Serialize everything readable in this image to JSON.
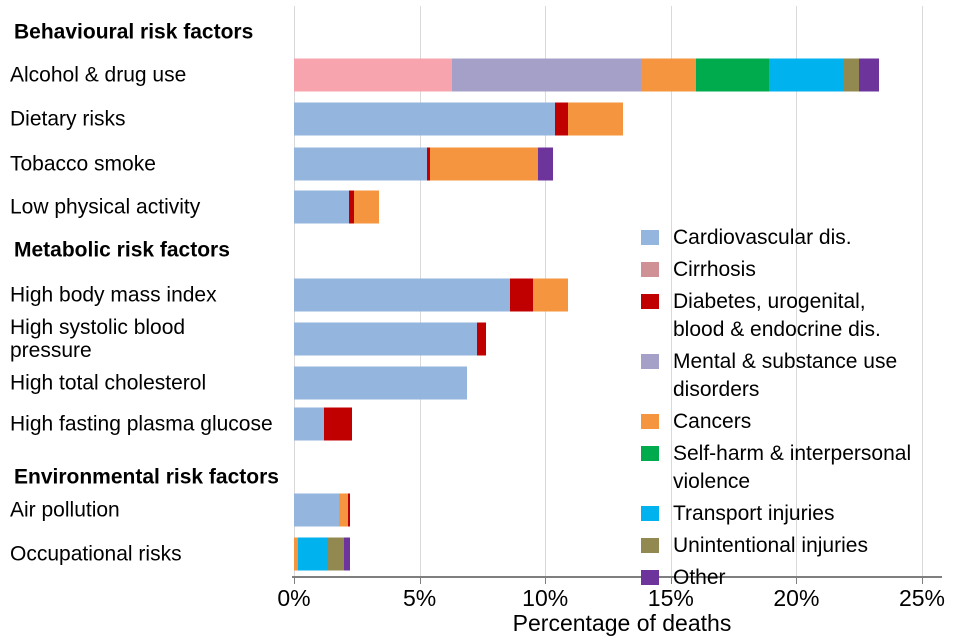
{
  "chart_data": {
    "type": "bar",
    "subtype": "horizontal-stacked",
    "title": "",
    "xlabel": "Percentage of deaths",
    "ylabel": "",
    "xlim": [
      0,
      25
    ],
    "grid": "vertical-light-gray",
    "legend_position": "inside-right",
    "x_ticks": [
      {
        "value": 0,
        "label": "0%"
      },
      {
        "value": 5,
        "label": "5%"
      },
      {
        "value": 10,
        "label": "10%"
      },
      {
        "value": 15,
        "label": "15%"
      },
      {
        "value": 20,
        "label": "20%"
      },
      {
        "value": 25,
        "label": "25%"
      }
    ],
    "categories": [
      {
        "key": "cvd",
        "label": "Cardiovascular dis.",
        "color": "#94b5dd"
      },
      {
        "key": "cirrhosis",
        "label": "Cirrhosis",
        "color": "#f7a4ae",
        "legend_swatch_color": "#cf9096"
      },
      {
        "key": "diabetes",
        "label": "Diabetes, urogenital,\nblood & endocrine dis.",
        "color": "#c00000"
      },
      {
        "key": "mental",
        "label": "Mental & substance use\ndisorders",
        "color": "#a5a0c8"
      },
      {
        "key": "cancers",
        "label": "Cancers",
        "color": "#f6953f"
      },
      {
        "key": "selfharm",
        "label": "Self-harm & interpersonal\nviolence",
        "color": "#00ab4e"
      },
      {
        "key": "transport",
        "label": "Transport injuries",
        "color": "#00b2ee"
      },
      {
        "key": "unintentional",
        "label": "Unintentional injuries",
        "color": "#91894f"
      },
      {
        "key": "other",
        "label": "Other",
        "color": "#6d359c"
      }
    ],
    "rows": [
      {
        "type": "header",
        "label": "Behavioural risk factors"
      },
      {
        "type": "bar",
        "label": "Alcohol & drug use",
        "total": 23.3,
        "segments": [
          {
            "category": "cirrhosis",
            "value": 6.3
          },
          {
            "category": "mental",
            "value": 7.5
          },
          {
            "category": "cancers",
            "value": 2.2
          },
          {
            "category": "selfharm",
            "value": 2.9
          },
          {
            "category": "transport",
            "value": 3.0
          },
          {
            "category": "unintentional",
            "value": 0.6
          },
          {
            "category": "other",
            "value": 0.8
          }
        ]
      },
      {
        "type": "bar",
        "label": "Dietary risks",
        "total": 13.1,
        "segments": [
          {
            "category": "cvd",
            "value": 10.4
          },
          {
            "category": "diabetes",
            "value": 0.5
          },
          {
            "category": "cancers",
            "value": 2.2
          }
        ]
      },
      {
        "type": "bar",
        "label": "Tobacco smoke",
        "total": 10.3,
        "segments": [
          {
            "category": "cvd",
            "value": 5.3
          },
          {
            "category": "diabetes",
            "value": 0.1
          },
          {
            "category": "cancers",
            "value": 4.3
          },
          {
            "category": "other",
            "value": 0.6
          }
        ]
      },
      {
        "type": "bar",
        "label": "Low physical activity",
        "total": 3.4,
        "segments": [
          {
            "category": "cvd",
            "value": 2.2
          },
          {
            "category": "diabetes",
            "value": 0.2
          },
          {
            "category": "cancers",
            "value": 1.0
          }
        ]
      },
      {
        "type": "header",
        "label": "Metabolic risk factors"
      },
      {
        "type": "bar",
        "label": "High body mass index",
        "total": 10.9,
        "segments": [
          {
            "category": "cvd",
            "value": 8.6
          },
          {
            "category": "diabetes",
            "value": 0.9
          },
          {
            "category": "cancers",
            "value": 1.4
          }
        ]
      },
      {
        "type": "bar",
        "label": "High systolic blood\npressure",
        "total": 7.65,
        "segments": [
          {
            "category": "cvd",
            "value": 7.3
          },
          {
            "category": "diabetes",
            "value": 0.35
          }
        ]
      },
      {
        "type": "bar",
        "label": "High total cholesterol",
        "total": 6.9,
        "segments": [
          {
            "category": "cvd",
            "value": 6.9
          }
        ]
      },
      {
        "type": "bar",
        "label": "High fasting plasma glucose",
        "total": 2.3,
        "segments": [
          {
            "category": "cvd",
            "value": 1.2
          },
          {
            "category": "diabetes",
            "value": 1.1
          }
        ]
      },
      {
        "type": "header",
        "label": "Environmental risk factors"
      },
      {
        "type": "bar",
        "label": "Air pollution",
        "total": 2.25,
        "segments": [
          {
            "category": "cvd",
            "value": 1.8
          },
          {
            "category": "cancers",
            "value": 0.35
          },
          {
            "category": "diabetes",
            "value": 0.1
          }
        ]
      },
      {
        "type": "bar",
        "label": "Occupational risks",
        "total": 2.25,
        "segments": [
          {
            "category": "cancers",
            "value": 0.15
          },
          {
            "category": "transport",
            "value": 1.2
          },
          {
            "category": "unintentional",
            "value": 0.65
          },
          {
            "category": "other",
            "value": 0.25
          }
        ]
      }
    ]
  }
}
